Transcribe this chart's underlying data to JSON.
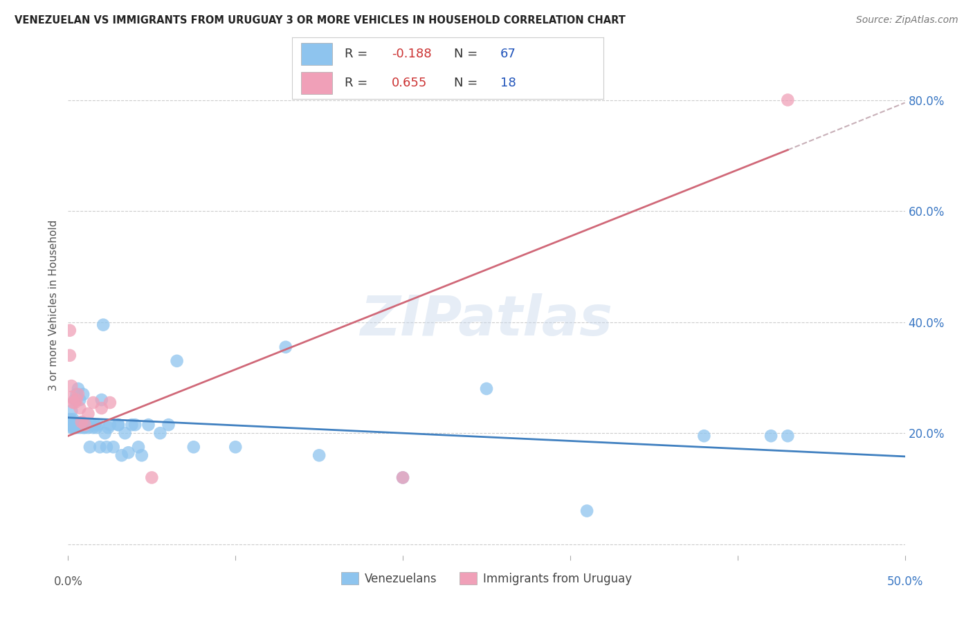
{
  "title": "VENEZUELAN VS IMMIGRANTS FROM URUGUAY 3 OR MORE VEHICLES IN HOUSEHOLD CORRELATION CHART",
  "source": "Source: ZipAtlas.com",
  "ylabel": "3 or more Vehicles in Household",
  "xlim": [
    0.0,
    0.5
  ],
  "ylim": [
    -0.02,
    0.88
  ],
  "yticks": [
    0.0,
    0.2,
    0.4,
    0.6,
    0.8
  ],
  "ytick_labels": [
    "",
    "20.0%",
    "40.0%",
    "60.0%",
    "80.0%"
  ],
  "xticks": [
    0.0,
    0.1,
    0.2,
    0.3,
    0.4,
    0.5
  ],
  "venezuelan_color": "#8EC4EE",
  "uruguay_color": "#F0A0B8",
  "trendline_blue_color": "#4080C0",
  "trendline_pink_color": "#D06878",
  "trendline_dashed_color": "#C8B0B8",
  "venezuelan_x": [
    0.001,
    0.001,
    0.001,
    0.002,
    0.002,
    0.002,
    0.002,
    0.003,
    0.003,
    0.003,
    0.003,
    0.004,
    0.004,
    0.004,
    0.004,
    0.005,
    0.005,
    0.005,
    0.006,
    0.006,
    0.007,
    0.007,
    0.008,
    0.008,
    0.009,
    0.009,
    0.01,
    0.01,
    0.011,
    0.012,
    0.013,
    0.014,
    0.015,
    0.016,
    0.017,
    0.018,
    0.019,
    0.02,
    0.021,
    0.022,
    0.023,
    0.024,
    0.025,
    0.027,
    0.03,
    0.03,
    0.032,
    0.034,
    0.036,
    0.038,
    0.04,
    0.042,
    0.044,
    0.048,
    0.055,
    0.06,
    0.065,
    0.075,
    0.1,
    0.13,
    0.15,
    0.2,
    0.25,
    0.31,
    0.38,
    0.42,
    0.43
  ],
  "venezuelan_y": [
    0.215,
    0.22,
    0.225,
    0.21,
    0.215,
    0.22,
    0.24,
    0.21,
    0.215,
    0.22,
    0.225,
    0.21,
    0.215,
    0.22,
    0.26,
    0.21,
    0.215,
    0.27,
    0.215,
    0.28,
    0.21,
    0.26,
    0.215,
    0.22,
    0.21,
    0.27,
    0.215,
    0.21,
    0.215,
    0.21,
    0.175,
    0.215,
    0.21,
    0.215,
    0.21,
    0.215,
    0.175,
    0.26,
    0.395,
    0.2,
    0.175,
    0.21,
    0.215,
    0.175,
    0.215,
    0.215,
    0.16,
    0.2,
    0.165,
    0.215,
    0.215,
    0.175,
    0.16,
    0.215,
    0.2,
    0.215,
    0.33,
    0.175,
    0.175,
    0.355,
    0.16,
    0.12,
    0.28,
    0.06,
    0.195,
    0.195,
    0.195
  ],
  "uruguay_x": [
    0.001,
    0.001,
    0.002,
    0.002,
    0.003,
    0.004,
    0.005,
    0.006,
    0.007,
    0.008,
    0.01,
    0.012,
    0.015,
    0.02,
    0.025,
    0.05,
    0.2,
    0.43
  ],
  "uruguay_y": [
    0.385,
    0.34,
    0.265,
    0.285,
    0.255,
    0.255,
    0.26,
    0.27,
    0.245,
    0.22,
    0.215,
    0.235,
    0.255,
    0.245,
    0.255,
    0.12,
    0.12,
    0.8
  ],
  "blue_trend_x0": 0.0,
  "blue_trend_y0": 0.228,
  "blue_trend_x1": 0.5,
  "blue_trend_y1": 0.158,
  "pink_trend_x0": 0.0,
  "pink_trend_y0": 0.195,
  "pink_trend_x1": 0.43,
  "pink_trend_y1": 0.71,
  "dashed_trend_x0": 0.43,
  "dashed_trend_y0": 0.71,
  "dashed_trend_x1": 0.5,
  "dashed_trend_y1": 0.795
}
